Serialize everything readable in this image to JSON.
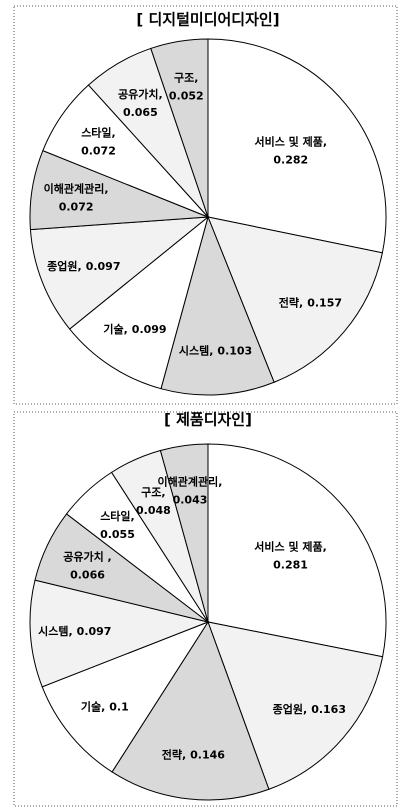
{
  "chart_data": [
    {
      "type": "pie",
      "title": "[ 디지털미디어디자인]",
      "categories": [
        "서비스 및 제품,",
        "전략,",
        "시스템,",
        "기술,",
        "종업원,",
        "이해관계관리,",
        "스타일,",
        "공유가치,",
        "구조,"
      ],
      "values": [
        0.282,
        0.157,
        0.103,
        0.099,
        0.097,
        0.072,
        0.072,
        0.065,
        0.052
      ],
      "colors": [
        "#ffffff",
        "#f2f2f2",
        "#d9d9d9",
        "#ffffff",
        "#f2f2f2",
        "#d9d9d9",
        "#ffffff",
        "#f2f2f2",
        "#d9d9d9"
      ]
    },
    {
      "type": "pie",
      "title": "[ 제품디자인]",
      "categories": [
        "서비스 및 제품,",
        "종업원,",
        "전략,",
        "기술,",
        "시스템,",
        "공유가치 ,",
        "스타일,",
        "구조,",
        "이해관계관리,"
      ],
      "values": [
        0.281,
        0.163,
        0.146,
        0.1,
        0.097,
        0.066,
        0.055,
        0.048,
        0.043
      ],
      "colors": [
        "#ffffff",
        "#f2f2f2",
        "#d9d9d9",
        "#ffffff",
        "#f2f2f2",
        "#d9d9d9",
        "#ffffff",
        "#f2f2f2",
        "#d9d9d9"
      ]
    }
  ]
}
